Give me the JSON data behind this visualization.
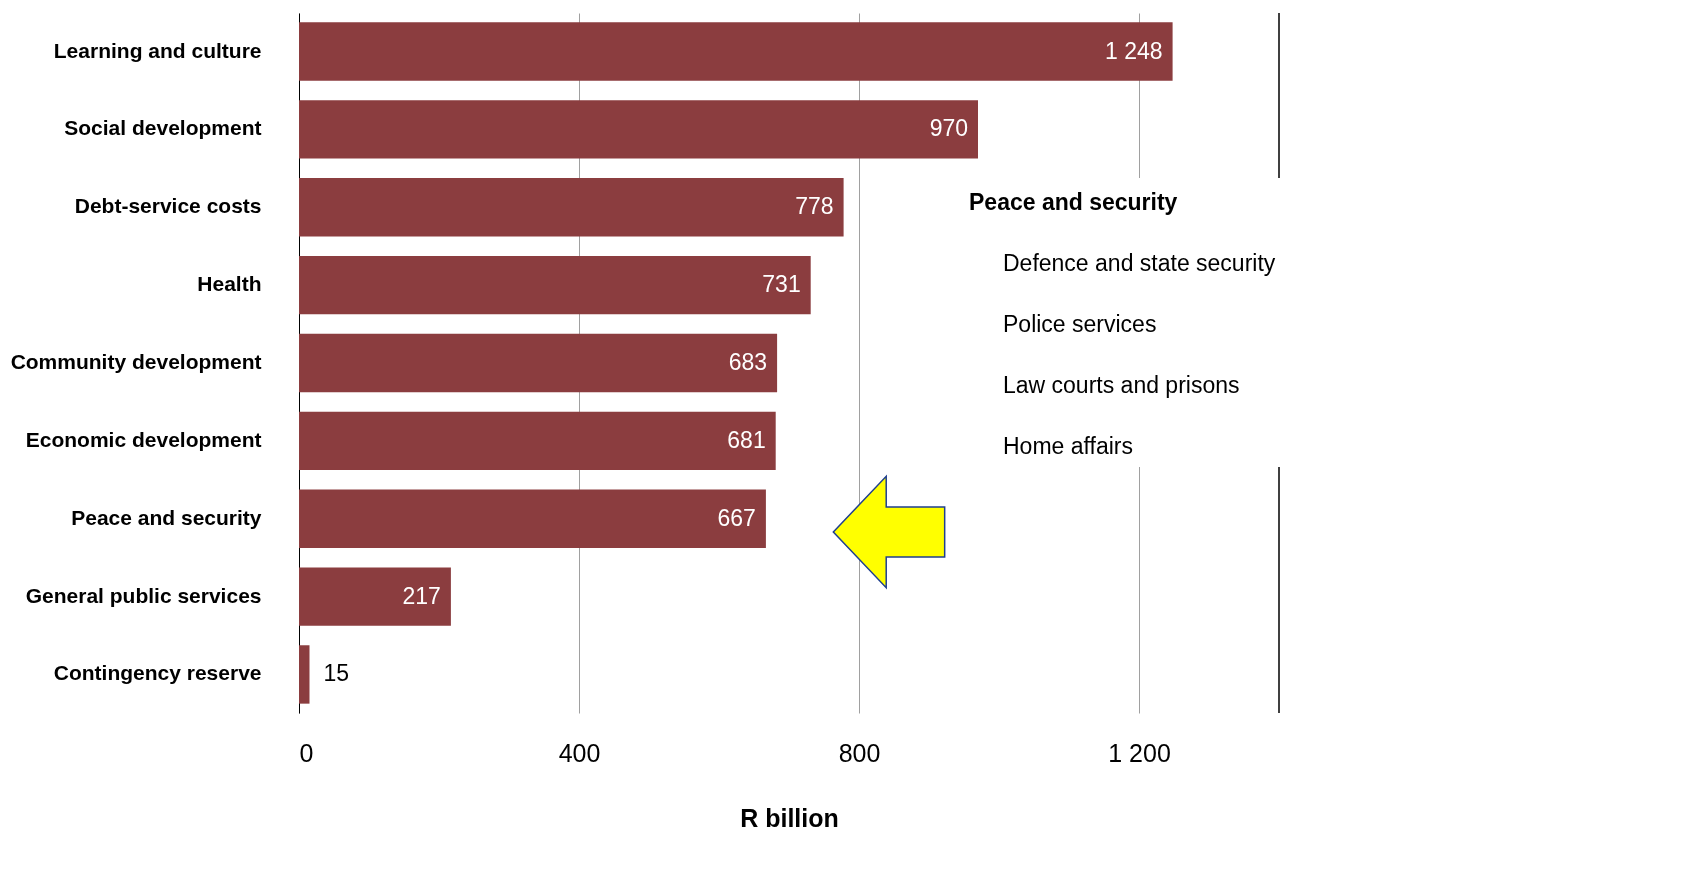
{
  "chart_data": {
    "type": "bar",
    "orientation": "horizontal",
    "xlabel": "R billion",
    "categories": [
      "Learning and culture",
      "Social development",
      "Debt-service costs",
      "Health",
      "Community development",
      "Economic development",
      "Peace and security",
      "General public services",
      "Contingency reserve"
    ],
    "values": [
      1248,
      970,
      778,
      731,
      683,
      681,
      667,
      217,
      15
    ],
    "value_labels": [
      "1 248",
      "970",
      "778",
      "731",
      "683",
      "681",
      "667",
      "217",
      "15"
    ],
    "color": "#8b3d3f",
    "xlim": [
      0,
      1400
    ],
    "xticks": [
      0,
      400,
      800,
      {
        "value": 1200,
        "label": "1 200"
      }
    ],
    "grid": "x",
    "annotations": [
      "Peace and security",
      "Defence and state security",
      "Police services",
      "Law courts and prisons",
      "Home affairs"
    ]
  }
}
